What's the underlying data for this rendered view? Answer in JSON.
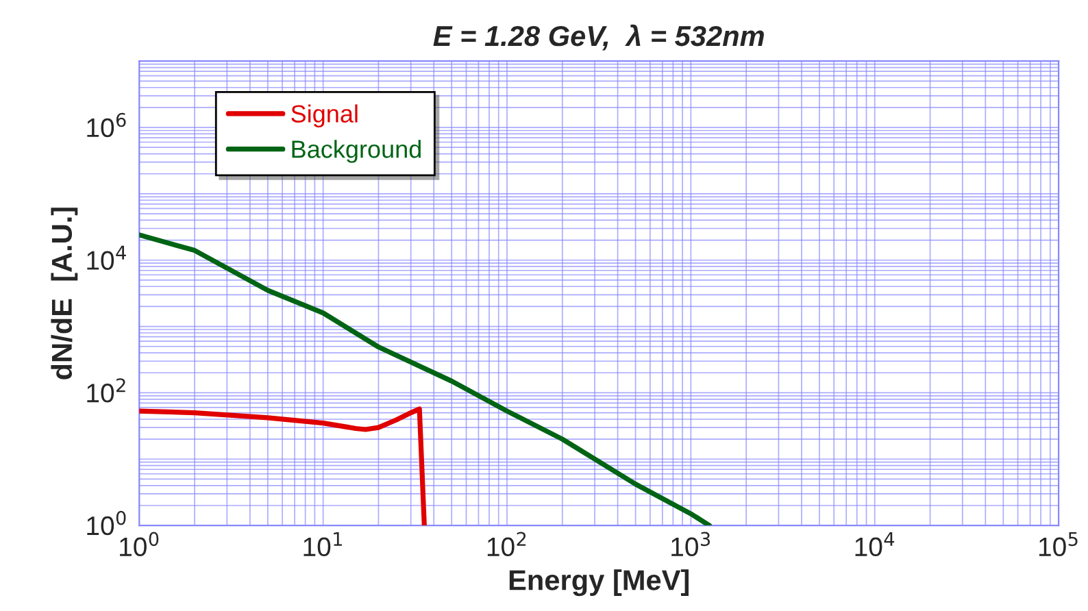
{
  "chart_data": {
    "type": "line",
    "title": "E = 1.28 GeV,  λ = 532nm",
    "xlabel": "Energy [MeV]",
    "ylabel": "dN/dE  [A.U.]",
    "log": "xy",
    "grid": true,
    "legend": "top left",
    "line_style": "solid",
    "marker": "none",
    "xlim": [
      1,
      100000
    ],
    "ylim": [
      1,
      10000000
    ],
    "xticks": [
      {
        "value": 1,
        "label": "10$^{0}$"
      },
      {
        "value": 2,
        "label": null
      },
      {
        "value": 3,
        "label": null
      },
      {
        "value": 4,
        "label": null
      },
      {
        "value": 5,
        "label": null
      },
      {
        "value": 6,
        "label": null
      },
      {
        "value": 7,
        "label": null
      },
      {
        "value": 8,
        "label": null
      },
      {
        "value": 9,
        "label": null
      },
      {
        "value": 10,
        "label": "10$^{1}$"
      },
      {
        "value": 20,
        "label": null
      },
      {
        "value": 30,
        "label": null
      },
      {
        "value": 40,
        "label": null
      },
      {
        "value": 50,
        "label": null
      },
      {
        "value": 60,
        "label": null
      },
      {
        "value": 70,
        "label": null
      },
      {
        "value": 80,
        "label": null
      },
      {
        "value": 90,
        "label": null
      },
      {
        "value": 100,
        "label": "10$^{2}$"
      },
      {
        "value": 200,
        "label": null
      },
      {
        "value": 300,
        "label": null
      },
      {
        "value": 400,
        "label": null
      },
      {
        "value": 500,
        "label": null
      },
      {
        "value": 600,
        "label": null
      },
      {
        "value": 700,
        "label": null
      },
      {
        "value": 800,
        "label": null
      },
      {
        "value": 900,
        "label": null
      },
      {
        "value": 1000,
        "label": "10$^{3}$"
      },
      {
        "value": 2000,
        "label": null
      },
      {
        "value": 3000,
        "label": null
      },
      {
        "value": 4000,
        "label": null
      },
      {
        "value": 5000,
        "label": null
      },
      {
        "value": 6000,
        "label": null
      },
      {
        "value": 7000,
        "label": null
      },
      {
        "value": 8000,
        "label": null
      },
      {
        "value": 9000,
        "label": null
      },
      {
        "value": 10000,
        "label": "10$^{4}$"
      },
      {
        "value": 20000,
        "label": null
      },
      {
        "value": 30000,
        "label": null
      },
      {
        "value": 40000,
        "label": null
      },
      {
        "value": 50000,
        "label": null
      },
      {
        "value": 60000,
        "label": null
      },
      {
        "value": 70000,
        "label": null
      },
      {
        "value": 80000,
        "label": null
      },
      {
        "value": 90000,
        "label": null
      },
      {
        "value": 100000,
        "label": "10$^{5}$"
      }
    ],
    "yticks": [
      {
        "value": 1,
        "label": "10$^{0}$"
      },
      {
        "value": 2,
        "label": null
      },
      {
        "value": 3,
        "label": null
      },
      {
        "value": 4,
        "label": null
      },
      {
        "value": 5,
        "label": null
      },
      {
        "value": 6,
        "label": null
      },
      {
        "value": 7,
        "label": null
      },
      {
        "value": 8,
        "label": null
      },
      {
        "value": 9,
        "label": null
      },
      {
        "value": 10,
        "label": null
      },
      {
        "value": 20,
        "label": null
      },
      {
        "value": 30,
        "label": null
      },
      {
        "value": 40,
        "label": null
      },
      {
        "value": 50,
        "label": null
      },
      {
        "value": 60,
        "label": null
      },
      {
        "value": 70,
        "label": null
      },
      {
        "value": 80,
        "label": null
      },
      {
        "value": 90,
        "label": null
      },
      {
        "value": 100,
        "label": "10$^{2}$"
      },
      {
        "value": 200,
        "label": null
      },
      {
        "value": 300,
        "label": null
      },
      {
        "value": 400,
        "label": null
      },
      {
        "value": 500,
        "label": null
      },
      {
        "value": 600,
        "label": null
      },
      {
        "value": 700,
        "label": null
      },
      {
        "value": 800,
        "label": null
      },
      {
        "value": 900,
        "label": null
      },
      {
        "value": 1000,
        "label": null
      },
      {
        "value": 2000,
        "label": null
      },
      {
        "value": 3000,
        "label": null
      },
      {
        "value": 4000,
        "label": null
      },
      {
        "value": 5000,
        "label": null
      },
      {
        "value": 6000,
        "label": null
      },
      {
        "value": 7000,
        "label": null
      },
      {
        "value": 8000,
        "label": null
      },
      {
        "value": 9000,
        "label": null
      },
      {
        "value": 10000,
        "label": "10$^{4}$"
      },
      {
        "value": 20000,
        "label": null
      },
      {
        "value": 30000,
        "label": null
      },
      {
        "value": 40000,
        "label": null
      },
      {
        "value": 50000,
        "label": null
      },
      {
        "value": 60000,
        "label": null
      },
      {
        "value": 70000,
        "label": null
      },
      {
        "value": 80000,
        "label": null
      },
      {
        "value": 90000,
        "label": null
      },
      {
        "value": 100000,
        "label": null
      },
      {
        "value": 200000,
        "label": null
      },
      {
        "value": 300000,
        "label": null
      },
      {
        "value": 400000,
        "label": null
      },
      {
        "value": 500000,
        "label": null
      },
      {
        "value": 600000,
        "label": null
      },
      {
        "value": 700000,
        "label": null
      },
      {
        "value": 800000,
        "label": null
      },
      {
        "value": 900000,
        "label": null
      },
      {
        "value": 1000000,
        "label": "10$^{6}$"
      },
      {
        "value": 2000000,
        "label": null
      },
      {
        "value": 3000000,
        "label": null
      },
      {
        "value": 4000000,
        "label": null
      },
      {
        "value": 5000000,
        "label": null
      },
      {
        "value": 6000000,
        "label": null
      },
      {
        "value": 7000000,
        "label": null
      },
      {
        "value": 8000000,
        "label": null
      },
      {
        "value": 9000000,
        "label": null
      },
      {
        "value": 10000000,
        "label": null
      }
    ],
    "series": [
      {
        "name": "Signal",
        "color": "#e00000",
        "x": [
          1,
          2,
          5,
          10,
          15,
          17,
          20,
          25,
          30,
          33.4,
          35.5
        ],
        "values": [
          53,
          50,
          42,
          35,
          29,
          28,
          30,
          39,
          50,
          57,
          1
        ]
      },
      {
        "name": "Background",
        "color": "#006414",
        "x": [
          1,
          2,
          5,
          10,
          20,
          50,
          100,
          200,
          500,
          1000,
          1260
        ],
        "values": [
          24000,
          14000,
          3500,
          1600,
          490,
          150,
          53,
          20,
          4.2,
          1.5,
          1
        ]
      }
    ]
  }
}
